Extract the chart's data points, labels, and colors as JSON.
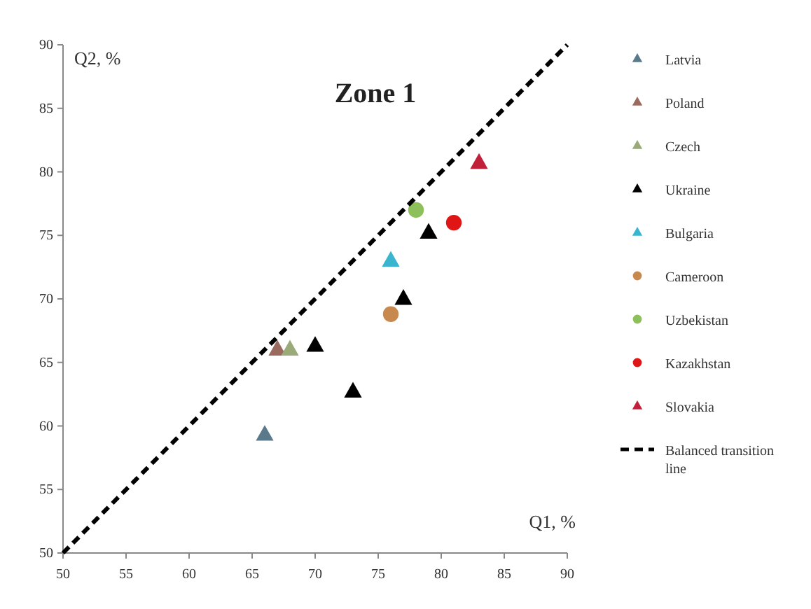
{
  "chart_data": {
    "type": "scatter",
    "xlabel": "Q1, %",
    "ylabel": "Q2, %",
    "annotations": [
      "Zone 1"
    ],
    "xlim": [
      50,
      90
    ],
    "xticks": [
      50,
      55,
      60,
      65,
      70,
      75,
      80,
      85,
      90
    ],
    "ylim": [
      50,
      90
    ],
    "yticks": [
      50,
      55,
      60,
      65,
      70,
      75,
      80,
      85,
      90
    ],
    "grid": false,
    "legend": "right",
    "series": [
      {
        "name": "Latvia",
        "color": "#5a7a8c",
        "marker": "triangle",
        "x": [
          66
        ],
        "values": [
          59.3
        ]
      },
      {
        "name": "Poland",
        "color": "#9b6a5e",
        "marker": "triangle",
        "x": [
          67
        ],
        "values": [
          66
        ]
      },
      {
        "name": "Czech",
        "color": "#9aaa78",
        "marker": "triangle",
        "x": [
          68
        ],
        "values": [
          66
        ]
      },
      {
        "name": "Ukraine",
        "color": "#000000",
        "marker": "triangle",
        "x": [
          70,
          73,
          77,
          79
        ],
        "values": [
          66.3,
          62.7,
          70,
          75.2
        ]
      },
      {
        "name": "Bulgaria",
        "color": "#3ab5d0",
        "marker": "triangle",
        "x": [
          76
        ],
        "values": [
          73
        ]
      },
      {
        "name": "Cameroon",
        "color": "#c8894e",
        "marker": "circle",
        "x": [
          76
        ],
        "values": [
          68.8
        ]
      },
      {
        "name": "Uzbekistan",
        "color": "#8dc05a",
        "marker": "circle",
        "x": [
          78
        ],
        "values": [
          77
        ]
      },
      {
        "name": "Kazakhstan",
        "color": "#e01515",
        "marker": "circle",
        "x": [
          81
        ],
        "values": [
          76
        ]
      },
      {
        "name": "Slovakia",
        "color": "#c0203a",
        "marker": "triangle",
        "x": [
          83
        ],
        "values": [
          80.7
        ]
      },
      {
        "name": "Balanced transition line",
        "type": "line",
        "color": "#000000",
        "line_style": "dashed",
        "x": [
          50,
          90
        ],
        "values": [
          50,
          90
        ]
      }
    ]
  }
}
